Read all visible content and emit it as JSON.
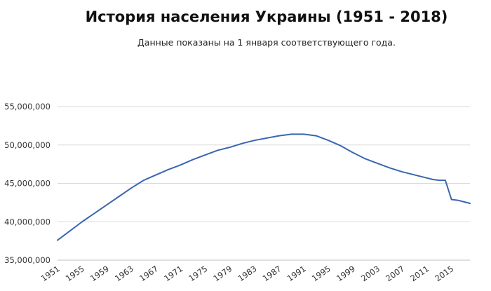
{
  "chart_data": {
    "type": "line",
    "title": "История населения Украины (1951 - 2018)",
    "subtitle": "Данные показаны на 1 января соответствующего года.",
    "xlabel": "",
    "ylabel": "",
    "xlim": [
      1951,
      2018
    ],
    "ylim": [
      35000000,
      55000000
    ],
    "y_ticks": [
      35000000,
      40000000,
      45000000,
      50000000,
      55000000
    ],
    "y_tick_labels": [
      "35,000,000",
      "40,000,000",
      "45,000,000",
      "50,000,000",
      "55,000,000"
    ],
    "x_ticks": [
      1951,
      1955,
      1959,
      1963,
      1967,
      1971,
      1975,
      1979,
      1983,
      1987,
      1991,
      1995,
      1999,
      2003,
      2007,
      2011,
      2015
    ],
    "x_tick_labels": [
      "1951",
      "1955",
      "1959",
      "1963",
      "1967",
      "1971",
      "1975",
      "1979",
      "1983",
      "1987",
      "1991",
      "1995",
      "1999",
      "2003",
      "2007",
      "2011",
      "2015"
    ],
    "grid": true,
    "line_color": "#3a66b0",
    "series": [
      {
        "x": [
          1951,
          1953,
          1955,
          1957,
          1959,
          1961,
          1963,
          1965,
          1967,
          1969,
          1971,
          1973,
          1975,
          1977,
          1979,
          1981,
          1983,
          1985,
          1987,
          1989,
          1991,
          1993,
          1995,
          1997,
          1999,
          2001,
          2003,
          2005,
          2007,
          2009,
          2011,
          2012,
          2013,
          2014,
          2015,
          2016,
          2017,
          2018
        ],
        "values": [
          37600000,
          38800000,
          40000000,
          41100000,
          42200000,
          43300000,
          44400000,
          45400000,
          46100000,
          46800000,
          47400000,
          48100000,
          48700000,
          49300000,
          49700000,
          50200000,
          50600000,
          50900000,
          51200000,
          51400000,
          51400000,
          51200000,
          50600000,
          49900000,
          49000000,
          48200000,
          47600000,
          47000000,
          46500000,
          46100000,
          45700000,
          45500000,
          45400000,
          45400000,
          42900000,
          42800000,
          42600000,
          42400000
        ]
      }
    ]
  }
}
